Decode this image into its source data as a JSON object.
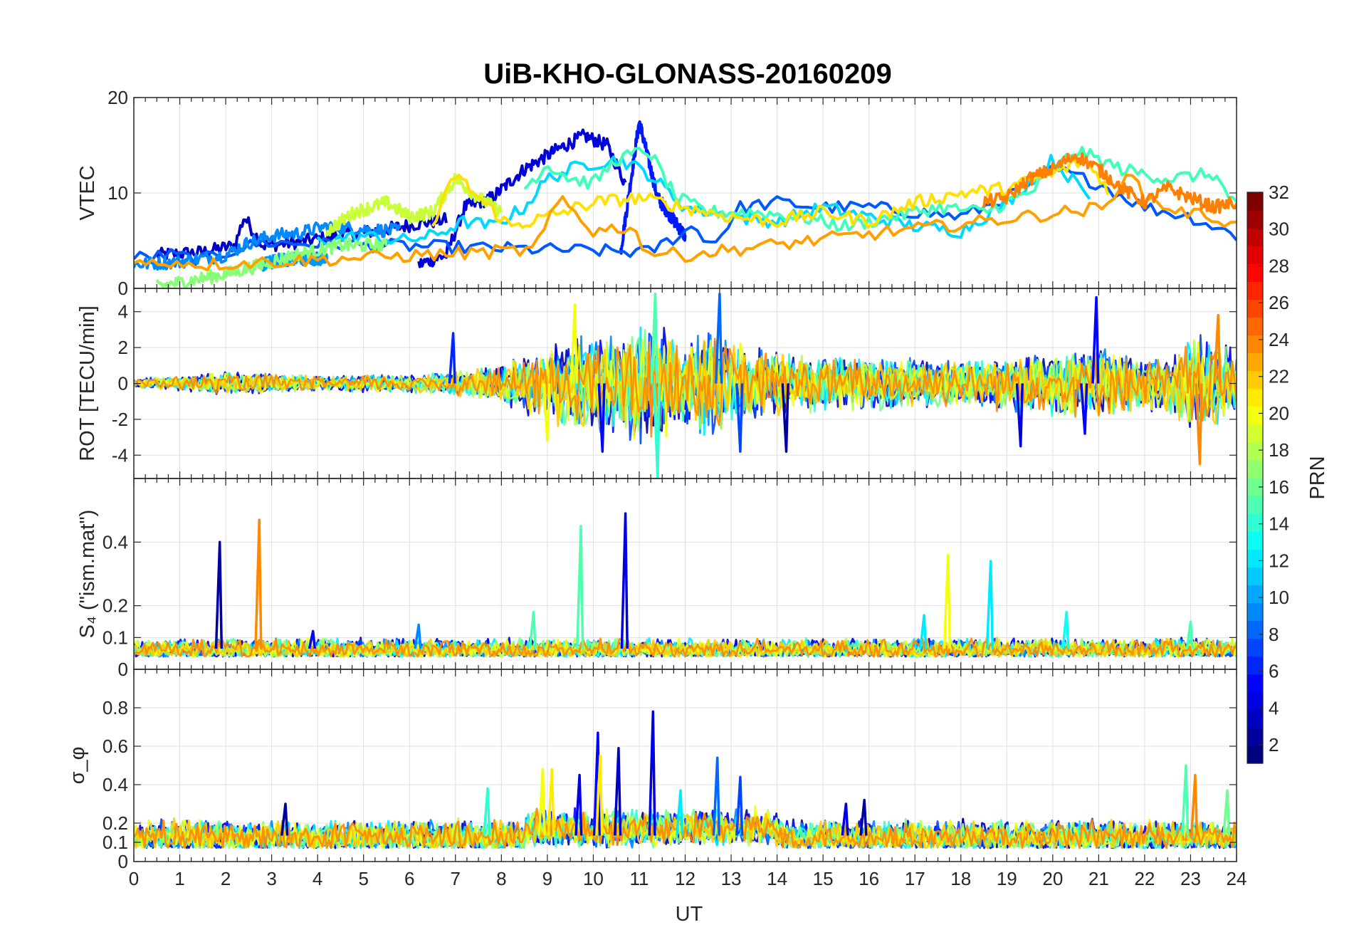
{
  "title": "UiB-KHO-GLONASS-20160209",
  "xlabel": "UT",
  "colorbar": {
    "label": "PRN",
    "range": [
      1,
      32
    ],
    "ticks": [
      "2",
      "4",
      "6",
      "8",
      "10",
      "12",
      "14",
      "16",
      "18",
      "20",
      "22",
      "24",
      "26",
      "28",
      "30",
      "32"
    ],
    "colormap": "jet"
  },
  "chart_data": [
    {
      "type": "line",
      "panel": "vtec",
      "ylabel": "VTEC",
      "xlim": [
        0,
        24
      ],
      "ylim": [
        0,
        20
      ],
      "yticks": [
        "0",
        "10",
        "20"
      ],
      "xticks": [],
      "grid": true,
      "series": [
        {
          "prn": 2,
          "color": "#0000c8",
          "x": [
            0.5,
            1.5,
            2.2,
            2.4,
            2.8,
            3.5,
            4.5,
            5.5,
            6.2,
            6.8
          ],
          "y": [
            3.5,
            3.8,
            4.5,
            7.5,
            4.5,
            4.8,
            5.5,
            6.2,
            6.8,
            7.2
          ]
        },
        {
          "prn": 3,
          "color": "#0000d8",
          "x": [
            6.2,
            6.8,
            7.2,
            7.8,
            8.5,
            9.2,
            9.8,
            10.3,
            10.7
          ],
          "y": [
            2.5,
            3.5,
            8.5,
            9.5,
            12.5,
            14.5,
            16.0,
            15.0,
            11.0
          ]
        },
        {
          "prn": 5,
          "color": "#0018ff",
          "x": [
            10.6,
            11.0,
            11.4,
            12.0
          ],
          "y": [
            4.0,
            17.5,
            9.5,
            5.5
          ]
        },
        {
          "prn": 7,
          "color": "#0058ff",
          "x": [
            0,
            0.8,
            1.5,
            2.3,
            2.8,
            11.2,
            12.2,
            12.6,
            13.2,
            14.0,
            15.0,
            16.0,
            17.0,
            18.0,
            19.0,
            20.0,
            21.0,
            22.0,
            23.0,
            24.0
          ],
          "y": [
            3.2,
            3.5,
            3.0,
            4.2,
            4.8,
            3.8,
            6.5,
            4.5,
            8.5,
            9.0,
            8.5,
            8.5,
            8.0,
            7.5,
            9.5,
            12.5,
            11.0,
            8.5,
            7.5,
            5.5
          ]
        },
        {
          "prn": 9,
          "color": "#0088ff",
          "x": [
            0,
            1.0,
            2.0,
            2.5,
            3.0,
            3.6,
            4.2,
            5.0,
            5.8
          ],
          "y": [
            2.5,
            2.8,
            3.5,
            4.8,
            5.5,
            5.8,
            6.5,
            6.2,
            6.0
          ]
        },
        {
          "prn": 10,
          "color": "#0098ff",
          "x": [
            2.8,
            3.2,
            3.8,
            4.2
          ],
          "y": [
            2.5,
            3.0,
            3.2,
            3.0
          ]
        },
        {
          "prn": 12,
          "color": "#00d8ff",
          "x": [
            4.0,
            5.0,
            5.8,
            6.5,
            7.2,
            7.8,
            8.5,
            9.0,
            9.8,
            10.6,
            11.2,
            12.0,
            13.0,
            14.0,
            15.0,
            16.0,
            17.0,
            18.0,
            19.0,
            20.0,
            20.8
          ],
          "y": [
            5.0,
            5.5,
            5.0,
            5.5,
            7.0,
            6.5,
            8.5,
            11.5,
            13.0,
            13.5,
            12.0,
            8.5,
            7.5,
            7.0,
            8.5,
            7.5,
            6.5,
            6.0,
            9.0,
            13.5,
            9.5
          ]
        },
        {
          "prn": 14,
          "color": "#40ffb8",
          "x": [
            8.5,
            9.0,
            9.5,
            10.0,
            10.5,
            11.2,
            11.8,
            12.5,
            13.5,
            14.5,
            15.5,
            16.5,
            17.5,
            18.5,
            19.5,
            20.5,
            21.5,
            22.5,
            23.5,
            24.0
          ],
          "y": [
            10.5,
            13.0,
            11.5,
            11.0,
            13.5,
            14.5,
            9.5,
            8.0,
            8.0,
            7.5,
            6.5,
            7.5,
            8.5,
            8.0,
            10.0,
            14.5,
            12.5,
            11.5,
            12.0,
            8.5
          ]
        },
        {
          "prn": 16,
          "color": "#88ff78",
          "x": [
            0.5,
            1.2,
            2.0,
            2.8,
            3.5,
            4.5,
            5.5
          ],
          "y": [
            0.2,
            0.8,
            1.5,
            2.5,
            3.5,
            4.5,
            4.5
          ]
        },
        {
          "prn": 18,
          "color": "#c8ff38",
          "x": [
            4.2,
            4.8,
            5.5,
            6.0,
            6.5,
            7.0,
            7.5,
            8.0
          ],
          "y": [
            6.0,
            8.0,
            9.0,
            7.5,
            8.0,
            11.5,
            9.5,
            8.0
          ]
        },
        {
          "prn": 20,
          "color": "#ffe000",
          "x": [
            6.5,
            7.0,
            7.5,
            8.2,
            9.0,
            10.0,
            11.0,
            12.0,
            13.0,
            14.0,
            15.0,
            16.0,
            17.0,
            18.0,
            19.0,
            20.0,
            20.7,
            21.2
          ],
          "y": [
            6.5,
            12.0,
            9.5,
            6.5,
            7.5,
            9.0,
            9.5,
            8.5,
            7.5,
            7.0,
            8.0,
            7.0,
            9.0,
            10.0,
            10.5,
            12.0,
            13.5,
            10.5
          ]
        },
        {
          "prn": 22,
          "color": "#ffa000",
          "x": [
            0,
            0.8,
            1.6,
            8.7,
            9.3,
            10.0,
            10.8,
            11.2,
            12.0,
            21.2,
            21.6,
            22.0,
            22.8,
            23.5,
            24.0
          ],
          "y": [
            2.5,
            2.8,
            2.5,
            4.0,
            9.5,
            6.0,
            6.5,
            3.8,
            3.5,
            8.5,
            12.5,
            9.5,
            8.0,
            7.5,
            6.5
          ]
        },
        {
          "prn": 24,
          "color": "#ff8000",
          "x": [
            18.5,
            19.0,
            19.5,
            20.0,
            20.5,
            21.0,
            21.5,
            22.0,
            22.5,
            23.0,
            23.5,
            24.0
          ],
          "y": [
            9.0,
            9.5,
            11.5,
            12.5,
            14.0,
            12.5,
            10.5,
            9.0,
            10.5,
            9.5,
            8.5,
            9.0
          ]
        }
      ]
    },
    {
      "type": "line",
      "panel": "rot",
      "ylabel": "ROT [TECU/min]",
      "xlim": [
        0,
        24
      ],
      "ylim": [
        -5.3,
        5.3
      ],
      "yticks": [
        "-4",
        "-2",
        "0",
        "2",
        "4"
      ],
      "xticks": [],
      "grid": true,
      "envelope": {
        "x": [
          0,
          2,
          3,
          4,
          5,
          6,
          7,
          8,
          8.8,
          9.5,
          10,
          10.5,
          11,
          11.5,
          12,
          12.5,
          13,
          14,
          15,
          16,
          17,
          18,
          19,
          20,
          21,
          22,
          22.5,
          23,
          23.5,
          24
        ],
        "amplitude": [
          0.3,
          0.8,
          0.7,
          0.5,
          0.6,
          0.6,
          0.9,
          1.3,
          2.5,
          3.2,
          3.5,
          3.5,
          4.5,
          4.0,
          3.0,
          3.8,
          3.0,
          2.2,
          2.0,
          1.8,
          1.8,
          1.6,
          2.0,
          2.2,
          2.5,
          1.8,
          2.2,
          3.5,
          3.0,
          2.5
        ]
      },
      "spikes": [
        {
          "x": 6.95,
          "y": 2.8,
          "prn": 6
        },
        {
          "x": 9.6,
          "y": 4.4,
          "prn": 20
        },
        {
          "x": 11.35,
          "y": 5.0,
          "prn": 15
        },
        {
          "x": 11.4,
          "y": -5.3,
          "prn": 14
        },
        {
          "x": 12.75,
          "y": 5.0,
          "prn": 8
        },
        {
          "x": 13.2,
          "y": -3.8,
          "prn": 7
        },
        {
          "x": 14.2,
          "y": -3.8,
          "prn": 2
        },
        {
          "x": 20.95,
          "y": 4.8,
          "prn": 5
        },
        {
          "x": 19.3,
          "y": -3.5,
          "prn": 4
        },
        {
          "x": 20.7,
          "y": -2.8,
          "prn": 5
        },
        {
          "x": 23.2,
          "y": -4.5,
          "prn": 24
        },
        {
          "x": 23.6,
          "y": 3.8,
          "prn": 24
        },
        {
          "x": 10.2,
          "y": -3.8,
          "prn": 5
        },
        {
          "x": 9.0,
          "y": -3.2,
          "prn": 20
        }
      ]
    },
    {
      "type": "line",
      "panel": "s4",
      "ylabel": "S₄ (\"ism.mat\")",
      "xlim": [
        0,
        24
      ],
      "ylim": [
        0,
        0.6
      ],
      "yticks": [
        "0",
        "0.1",
        "0.2",
        "0.4"
      ],
      "xticks": [],
      "grid": true,
      "baseline": [
        0.04,
        0.09
      ],
      "spikes": [
        {
          "x": 1.87,
          "y": 0.4,
          "prn": 2
        },
        {
          "x": 2.73,
          "y": 0.47,
          "prn": 24
        },
        {
          "x": 9.73,
          "y": 0.45,
          "prn": 15
        },
        {
          "x": 10.7,
          "y": 0.49,
          "prn": 4
        },
        {
          "x": 17.72,
          "y": 0.36,
          "prn": 20
        },
        {
          "x": 18.65,
          "y": 0.34,
          "prn": 12
        },
        {
          "x": 3.9,
          "y": 0.12,
          "prn": 5
        },
        {
          "x": 6.2,
          "y": 0.14,
          "prn": 9
        },
        {
          "x": 8.7,
          "y": 0.18,
          "prn": 15
        },
        {
          "x": 17.2,
          "y": 0.17,
          "prn": 12
        },
        {
          "x": 20.3,
          "y": 0.18,
          "prn": 13
        },
        {
          "x": 23.0,
          "y": 0.15,
          "prn": 15
        }
      ]
    },
    {
      "type": "line",
      "panel": "sigma_phi",
      "ylabel": "σ_φ",
      "xlim": [
        0,
        24
      ],
      "ylim": [
        0,
        1
      ],
      "yticks": [
        "0",
        "0.1",
        "0.2",
        "0.4",
        "0.6",
        "0.8"
      ],
      "xticks": [
        "0",
        "1",
        "2",
        "3",
        "4",
        "5",
        "6",
        "7",
        "8",
        "9",
        "10",
        "11",
        "12",
        "13",
        "14",
        "15",
        "16",
        "17",
        "18",
        "19",
        "20",
        "21",
        "22",
        "23",
        "24"
      ],
      "grid": true,
      "baseline": [
        0.07,
        0.2
      ],
      "spikes": [
        {
          "x": 10.1,
          "y": 0.67,
          "prn": 5
        },
        {
          "x": 11.3,
          "y": 0.78,
          "prn": 4
        },
        {
          "x": 10.55,
          "y": 0.59,
          "prn": 3
        },
        {
          "x": 12.7,
          "y": 0.54,
          "prn": 8
        },
        {
          "x": 8.9,
          "y": 0.48,
          "prn": 20
        },
        {
          "x": 9.1,
          "y": 0.48,
          "prn": 21
        },
        {
          "x": 9.7,
          "y": 0.45,
          "prn": 4
        },
        {
          "x": 10.15,
          "y": 0.55,
          "prn": 21
        },
        {
          "x": 22.9,
          "y": 0.5,
          "prn": 15
        },
        {
          "x": 23.1,
          "y": 0.45,
          "prn": 24
        },
        {
          "x": 23.8,
          "y": 0.37,
          "prn": 16
        },
        {
          "x": 11.9,
          "y": 0.37,
          "prn": 12
        },
        {
          "x": 13.2,
          "y": 0.44,
          "prn": 7
        },
        {
          "x": 7.7,
          "y": 0.38,
          "prn": 14
        },
        {
          "x": 3.3,
          "y": 0.3,
          "prn": 2
        },
        {
          "x": 15.5,
          "y": 0.3,
          "prn": 4
        },
        {
          "x": 15.9,
          "y": 0.32,
          "prn": 2
        }
      ]
    }
  ]
}
